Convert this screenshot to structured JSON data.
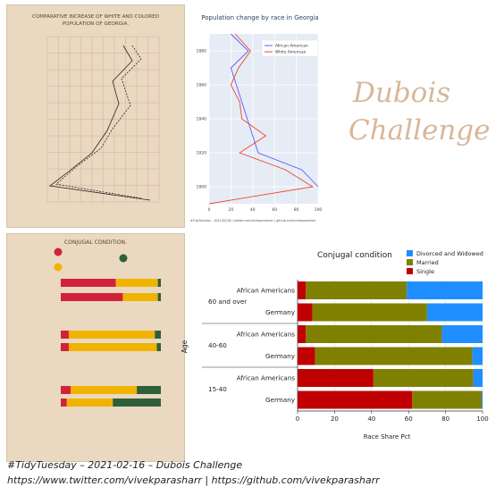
{
  "original_plot1": {
    "title_line1": "COMPARATIVE INCREASE OF WHITE AND COLORED",
    "title_line2": "POPULATION OF GEORGIA."
  },
  "original_plot2": {
    "title": "CONJUGAL CONDITION."
  },
  "colors": {
    "african_american": "#5b5bf2",
    "white_american": "#f0452c",
    "divorced": "#1f8fff",
    "married": "#808000",
    "single": "#c00000",
    "plot_bg": "#e6ecf5",
    "paper": "#e8d9c0"
  },
  "dubois_title": {
    "line1": "Dubois",
    "line2": "Challenge"
  },
  "line_chart": {
    "title": "Population change by race in Georgia",
    "footnote": "#TidyTuesday - 2021/02/16 | twitter.com/vivekparasharr | github.com/vivekparasharr",
    "chart_data": {
      "type": "line",
      "title": "Population change by race in Georgia",
      "xlabel": "",
      "ylabel": "",
      "xlim": [
        0,
        100
      ],
      "ylim": [
        1790,
        1890
      ],
      "x_ticks": [
        0,
        20,
        40,
        60,
        80,
        100
      ],
      "y_ticks": [
        1800,
        1820,
        1840,
        1860,
        1880
      ],
      "legend_position": "top-right",
      "series": [
        {
          "name": "African American",
          "color": "#5b5bf2",
          "points": [
            [
              100,
              1800
            ],
            [
              85,
              1810
            ],
            [
              45,
              1820
            ],
            [
              40,
              1830
            ],
            [
              35,
              1840
            ],
            [
              30,
              1850
            ],
            [
              25,
              1860
            ],
            [
              20,
              1870
            ],
            [
              36,
              1880
            ],
            [
              20,
              1890
            ]
          ]
        },
        {
          "name": "White American",
          "color": "#f0452c",
          "points": [
            [
              0,
              1790
            ],
            [
              95,
              1800
            ],
            [
              70,
              1810
            ],
            [
              28,
              1820
            ],
            [
              52,
              1830
            ],
            [
              30,
              1840
            ],
            [
              28,
              1850
            ],
            [
              20,
              1860
            ],
            [
              27,
              1870
            ],
            [
              38,
              1880
            ],
            [
              24,
              1890
            ]
          ]
        }
      ]
    }
  },
  "conjugal_chart": {
    "chart_data": {
      "type": "bar",
      "orientation": "horizontal",
      "title": "Conjugal condition",
      "xlabel": "Race Share Pct",
      "ylabel": "Age",
      "xlim": [
        0,
        100
      ],
      "x_ticks": [
        0,
        20,
        40,
        60,
        80,
        100
      ],
      "legend_position": "top-right",
      "groups": [
        {
          "label": "60 and over",
          "rows": [
            {
              "label": "African Americans",
              "single": 4.5,
              "married": 54.5,
              "divorced": 41
            },
            {
              "label": "Germany",
              "single": 8,
              "married": 62,
              "divorced": 30
            }
          ]
        },
        {
          "label": "40-60",
          "rows": [
            {
              "label": "African Americans",
              "single": 4.5,
              "married": 73.5,
              "divorced": 22
            },
            {
              "label": "Germany",
              "single": 9.5,
              "married": 85,
              "divorced": 5.5
            }
          ]
        },
        {
          "label": "15-40",
          "rows": [
            {
              "label": "African Americans",
              "single": 41,
              "married": 54,
              "divorced": 5
            },
            {
              "label": "Germany",
              "single": 62,
              "married": 37.5,
              "divorced": 0.5
            }
          ]
        }
      ],
      "series": [
        {
          "name": "Divorced and Widowed",
          "color": "#1f8fff"
        },
        {
          "name": "Married",
          "color": "#808000"
        },
        {
          "name": "Single",
          "color": "#c00000"
        }
      ]
    }
  },
  "caption": {
    "line1": "#TidyTuesday – 2021-02-16 – Dubois Challenge",
    "line2": "https://www.twitter.com/vivekparasharr  |  https://github.com/vivekparasharr"
  }
}
